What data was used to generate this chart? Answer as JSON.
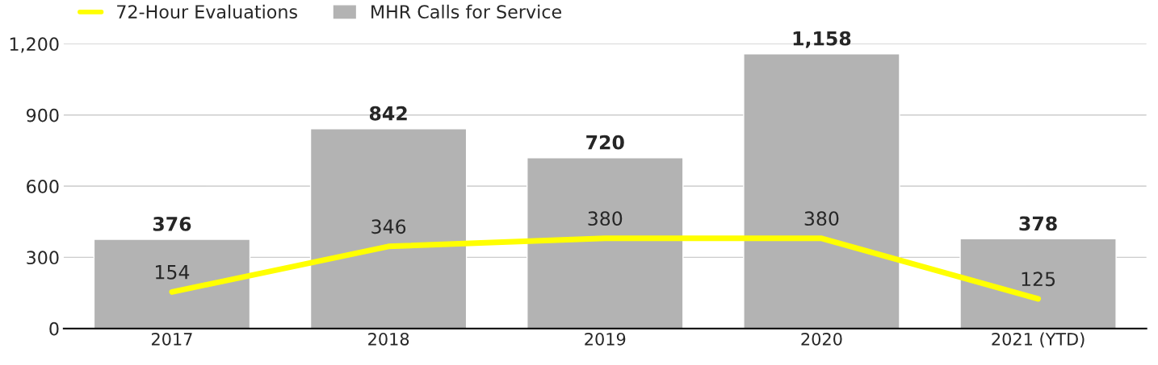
{
  "chart_data": {
    "type": "bar",
    "categories": [
      "2017",
      "2018",
      "2019",
      "2020",
      "2021 (YTD)"
    ],
    "series": [
      {
        "name": "72-Hour Evaluations",
        "type": "line",
        "color": "#ffff00",
        "values": [
          154,
          346,
          380,
          380,
          125
        ],
        "value_labels": [
          "154",
          "346",
          "380",
          "380",
          "125"
        ],
        "marker": "none",
        "line_style": "solid"
      },
      {
        "name": "MHR Calls for Service",
        "color": "#b3b3b3",
        "values": [
          376,
          842,
          720,
          1158,
          378
        ],
        "value_labels": [
          "376",
          "842",
          "720",
          "1,158",
          "378"
        ]
      }
    ],
    "ylim": [
      0,
      1200
    ],
    "yticks": [
      0,
      {
        "value": 300,
        "label": "300"
      },
      {
        "value": 600,
        "label": "600"
      },
      {
        "value": 900,
        "label": "900"
      },
      {
        "value": 1200,
        "label": "1,200"
      }
    ],
    "grid": "y",
    "legend": "top left"
  }
}
